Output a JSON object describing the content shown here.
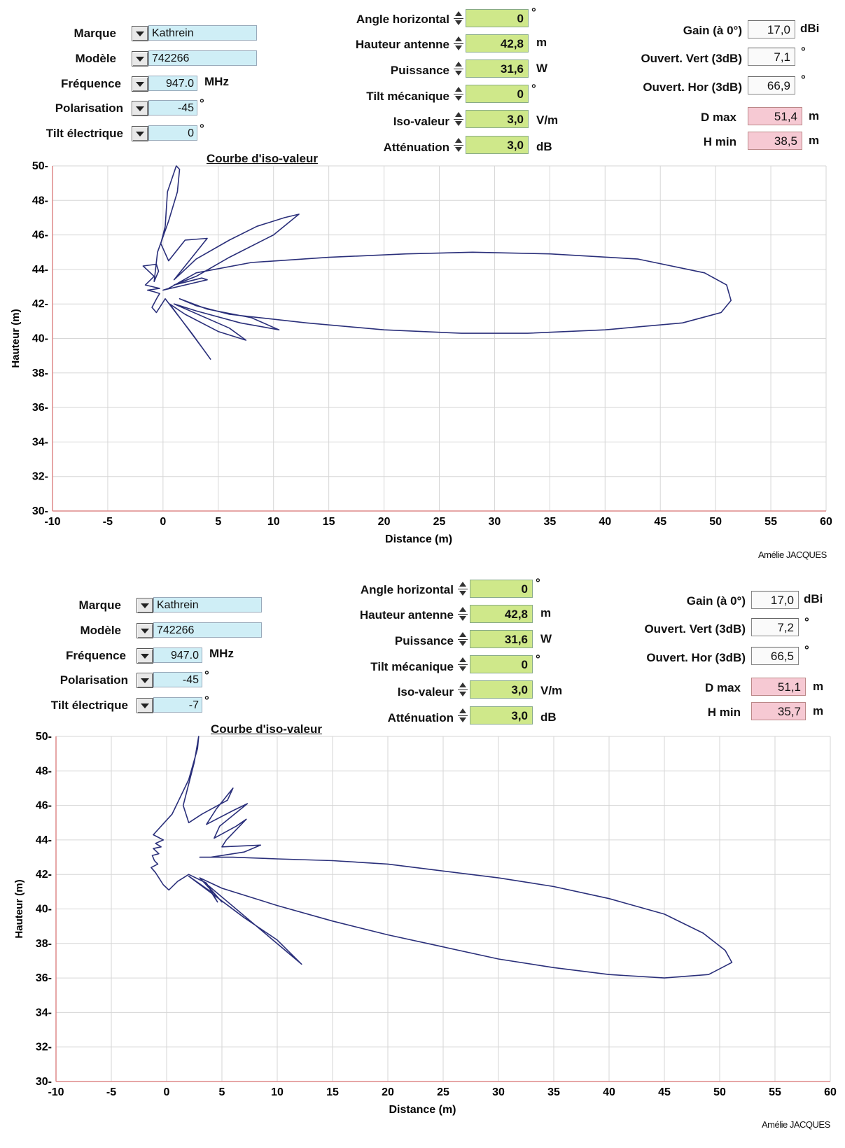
{
  "panels": [
    {
      "left": {
        "marque_label": "Marque",
        "marque_value": "Kathrein",
        "modele_label": "Modèle",
        "modele_value": "742266",
        "frequence_label": "Fréquence",
        "frequence_value": "947.0",
        "frequence_unit": "MHz",
        "polarisation_label": "Polarisation",
        "polarisation_value": "-45",
        "polarisation_unit": "°",
        "tilt_elec_label": "Tilt électrique",
        "tilt_elec_value": "0",
        "tilt_elec_unit": "°"
      },
      "middle": {
        "angle_label": "Angle horizontal",
        "angle_value": "0",
        "angle_unit": "°",
        "hauteur_label": "Hauteur antenne",
        "hauteur_value": "42,8",
        "hauteur_unit": "m",
        "puissance_label": "Puissance",
        "puissance_value": "31,6",
        "puissance_unit": "W",
        "tilt_meca_label": "Tilt mécanique",
        "tilt_meca_value": "0",
        "tilt_meca_unit": "°",
        "iso_label": "Iso-valeur",
        "iso_value": "3,0",
        "iso_unit": "V/m",
        "att_label": "Atténuation",
        "att_value": "3,0",
        "att_unit": "dB"
      },
      "right": {
        "gain_label": "Gain (à 0°)",
        "gain_value": "17,0",
        "gain_unit": "dBi",
        "ouv_vert_label": "Ouvert. Vert (3dB)",
        "ouv_vert_value": "7,1",
        "ouv_vert_unit": "°",
        "ouv_hor_label": "Ouvert. Hor (3dB)",
        "ouv_hor_value": "66,9",
        "ouv_hor_unit": "°",
        "dmax_label": "D max",
        "dmax_value": "51,4",
        "dmax_unit": "m",
        "hmin_label": "H min",
        "hmin_value": "38,5",
        "hmin_unit": "m"
      },
      "chart_title": "Courbe d'iso-valeur",
      "author": "Amélie JACQUES"
    },
    {
      "left": {
        "marque_label": "Marque",
        "marque_value": "Kathrein",
        "modele_label": "Modèle",
        "modele_value": "742266",
        "frequence_label": "Fréquence",
        "frequence_value": "947.0",
        "frequence_unit": "MHz",
        "polarisation_label": "Polarisation",
        "polarisation_value": "-45",
        "polarisation_unit": "°",
        "tilt_elec_label": "Tilt électrique",
        "tilt_elec_value": "-7",
        "tilt_elec_unit": "°"
      },
      "middle": {
        "angle_label": "Angle horizontal",
        "angle_value": "0",
        "angle_unit": "°",
        "hauteur_label": "Hauteur antenne",
        "hauteur_value": "42,8",
        "hauteur_unit": "m",
        "puissance_label": "Puissance",
        "puissance_value": "31,6",
        "puissance_unit": "W",
        "tilt_meca_label": "Tilt mécanique",
        "tilt_meca_value": "0",
        "tilt_meca_unit": "°",
        "iso_label": "Iso-valeur",
        "iso_value": "3,0",
        "iso_unit": "V/m",
        "att_label": "Atténuation",
        "att_value": "3,0",
        "att_unit": "dB"
      },
      "right": {
        "gain_label": "Gain (à 0°)",
        "gain_value": "17,0",
        "gain_unit": "dBi",
        "ouv_vert_label": "Ouvert. Vert (3dB)",
        "ouv_vert_value": "7,2",
        "ouv_vert_unit": "°",
        "ouv_hor_label": "Ouvert. Hor (3dB)",
        "ouv_hor_value": "66,5",
        "ouv_hor_unit": "°",
        "dmax_label": "D max",
        "dmax_value": "51,1",
        "dmax_unit": "m",
        "hmin_label": "H min",
        "hmin_value": "35,7",
        "hmin_unit": "m"
      },
      "chart_title": "Courbe d'iso-valeur",
      "author": "Amélie JACQUES"
    }
  ],
  "colors": {
    "curve": "#2a2f7a",
    "grid": "#d6d6d6",
    "axis": "#d88"
  },
  "chart_data": [
    {
      "type": "line",
      "xlabel": "Distance (m)",
      "ylabel": "Hauteur (m)",
      "xlim": [
        -10,
        60
      ],
      "ylim": [
        30,
        50
      ],
      "xticks": [
        "-10",
        "-5",
        "0",
        "5",
        "10",
        "15",
        "20",
        "25",
        "30",
        "35",
        "40",
        "45",
        "50",
        "55",
        "60"
      ],
      "yticks": [
        "30",
        "32",
        "34",
        "36",
        "38",
        "40",
        "42",
        "44",
        "46",
        "48",
        "50"
      ],
      "grid": true,
      "series": [
        {
          "x": [
            0,
            0.5,
            3,
            8,
            15,
            22,
            28,
            35,
            43,
            49,
            51,
            51.4,
            50.5,
            47,
            40,
            33,
            27,
            20,
            13,
            6,
            3,
            1.5,
            4,
            8,
            10.5,
            7,
            3,
            1,
            6,
            7.5,
            5,
            2,
            0.6,
            3.5,
            4.3,
            2.6,
            0.2,
            -0.6,
            -1,
            -0.5,
            -0.3,
            -0.8,
            -1.4,
            -0.3,
            -1.6,
            -0.8,
            -1.8,
            -0.6,
            -0.4,
            -0.8,
            -0.5,
            0.5,
            1.3,
            1.5,
            1.2,
            0.4,
            0.2,
            -0.2,
            0.5,
            2,
            4,
            2.5,
            1,
            3,
            6,
            8.5,
            11,
            12.3,
            10,
            6,
            3,
            1,
            3.5,
            4,
            2,
            0
          ],
          "y": [
            42.8,
            42.9,
            43.8,
            44.4,
            44.7,
            44.9,
            45,
            44.9,
            44.6,
            43.8,
            43.1,
            42.2,
            41.5,
            40.9,
            40.5,
            40.3,
            40.3,
            40.5,
            40.9,
            41.4,
            41.9,
            42.3,
            41.7,
            41.2,
            40.5,
            40.9,
            41.6,
            42,
            40.6,
            39.9,
            40.4,
            41.4,
            42,
            39.5,
            38.8,
            40.3,
            42.3,
            41.5,
            41.8,
            42.4,
            42.6,
            42.7,
            42.8,
            42.9,
            43.1,
            43.6,
            44.2,
            44.3,
            43.9,
            43.3,
            45,
            46.8,
            48.5,
            49.8,
            50,
            48.5,
            46.5,
            45.5,
            44.5,
            45.7,
            45.8,
            44.6,
            43.4,
            44.6,
            45.7,
            46.5,
            47,
            47.2,
            46,
            44.7,
            43.6,
            43.1,
            43.5,
            43.4,
            43.1,
            42.8
          ]
        }
      ]
    },
    {
      "type": "line",
      "xlabel": "Distance (m)",
      "ylabel": "Hauteur (m)",
      "xlim": [
        -10,
        60
      ],
      "ylim": [
        30,
        50
      ],
      "xticks": [
        "-10",
        "-5",
        "0",
        "5",
        "10",
        "15",
        "20",
        "25",
        "30",
        "35",
        "40",
        "45",
        "50",
        "55",
        "60"
      ],
      "yticks": [
        "30",
        "32",
        "34",
        "36",
        "38",
        "40",
        "42",
        "44",
        "46",
        "48",
        "50"
      ],
      "grid": true,
      "series": [
        {
          "x": [
            3,
            6,
            10,
            15,
            20,
            25,
            30,
            35,
            40,
            45,
            48.5,
            50.5,
            51.1,
            49,
            45,
            40,
            35,
            30,
            25,
            20,
            15,
            10,
            5,
            3,
            5,
            3.5,
            12.2,
            10,
            7,
            4.5,
            2,
            4,
            4.6,
            3.6,
            2,
            1,
            0.2,
            -0.3,
            -1,
            -1.4,
            -0.8,
            -1.1,
            -1.3,
            -0.7,
            -1.2,
            -0.5,
            -1,
            -0.3,
            -1.2,
            0.5,
            2,
            2.8,
            2.9,
            2.5,
            1.5,
            2,
            3.2,
            5.5,
            6,
            4.5,
            3.6,
            6,
            7.3,
            4.8,
            4.3,
            6.3,
            7.2,
            5.4,
            5,
            8.5,
            7,
            4,
            3
          ],
          "y": [
            43,
            43,
            42.9,
            42.8,
            42.6,
            42.2,
            41.8,
            41.3,
            40.6,
            39.7,
            38.6,
            37.6,
            36.9,
            36.2,
            36,
            36.2,
            36.6,
            37.1,
            37.8,
            38.5,
            39.3,
            40.2,
            41.2,
            41.8,
            40.4,
            41.5,
            36.8,
            38.2,
            39.5,
            40.7,
            41.9,
            41,
            40.4,
            41.5,
            42,
            41.6,
            41.1,
            41.4,
            42.1,
            42.4,
            42.6,
            42.8,
            43.1,
            43.2,
            43.5,
            43.6,
            43.8,
            44,
            44.3,
            45.5,
            47.5,
            49.3,
            50,
            48.5,
            46,
            45,
            45.5,
            46.3,
            47,
            45.8,
            44.9,
            45.7,
            46.1,
            44.8,
            44.1,
            44.8,
            45.2,
            44,
            43.6,
            43.7,
            43.3,
            43,
            43
          ]
        }
      ]
    }
  ]
}
